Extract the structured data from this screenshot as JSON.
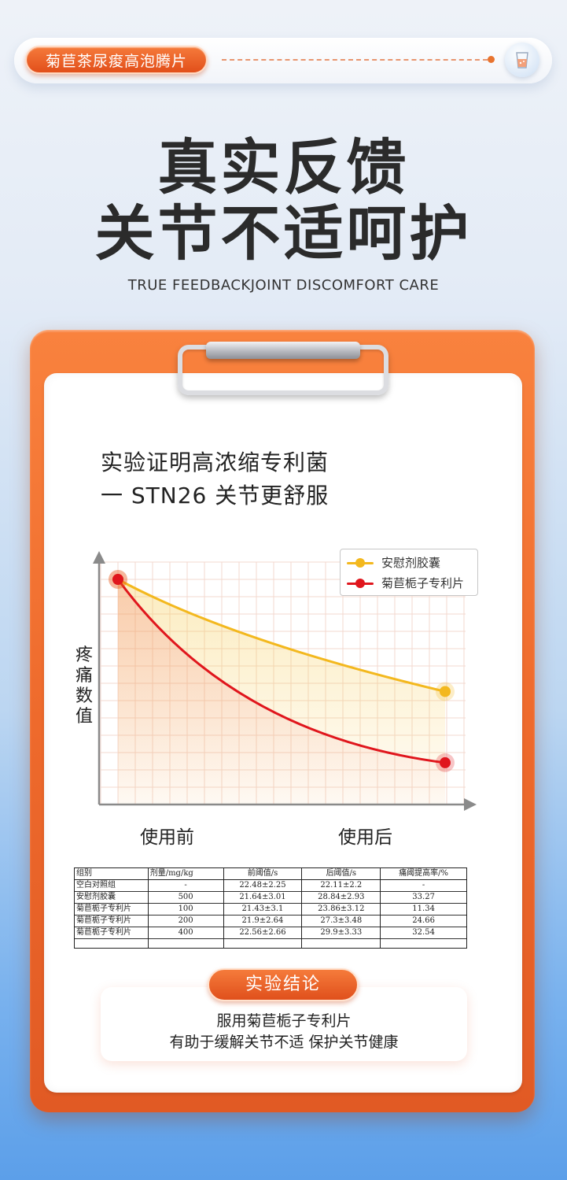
{
  "header": {
    "tag_label": "菊苣茶尿痠高泡腾片",
    "cup_icon": "cup-icon"
  },
  "headline": {
    "line1": "真实反馈",
    "line2": "关节不适呵护",
    "subtitle": "TRUE FEEDBACKJOINT DISCOMFORT CARE"
  },
  "claim": {
    "line1": "实验证明高浓缩专利菌",
    "line2": "一 STN26 关节更舒服"
  },
  "colors": {
    "series_a": "#f3b81e",
    "series_b": "#e0161d",
    "accent": "#ee6a2c"
  },
  "chart_data": {
    "type": "line",
    "categories": [
      "使用前",
      "使用后"
    ],
    "ylabel": "疼痛数值",
    "xlabel": "",
    "grid": true,
    "legend": "top-right",
    "series": [
      {
        "name": "安慰剂胶囊",
        "values": [
          1.0,
          0.48
        ]
      },
      {
        "name": "菊苣栀子专利片",
        "values": [
          1.0,
          0.15
        ]
      }
    ]
  },
  "table": {
    "headers": [
      "组别",
      "剂量/mg/kg",
      "前阈值/s",
      "后阈值/s",
      "痛阈提高率/%"
    ],
    "rows": [
      [
        "空白对照组",
        "-",
        "22.48±2.25",
        "22.11±2.2",
        "-"
      ],
      [
        "安慰剂胶囊",
        "500",
        "21.64±3.01",
        "28.84±2.93",
        "33.27"
      ],
      [
        "菊苣栀子专利片",
        "100",
        "21.43±3.1",
        "23.86±3.12",
        "11.34"
      ],
      [
        "菊苣栀子专利片",
        "200",
        "21.9±2.64",
        "27.3±3.48",
        "24.66"
      ],
      [
        "菊苣栀子专利片",
        "400",
        "22.56±2.66",
        "29.9±3.33",
        "32.54"
      ]
    ]
  },
  "conclusion": {
    "tag": "实验结论",
    "line1": "服用菊苣栀子专利片",
    "line2": "有助于缓解关节不适 保护关节健康"
  }
}
